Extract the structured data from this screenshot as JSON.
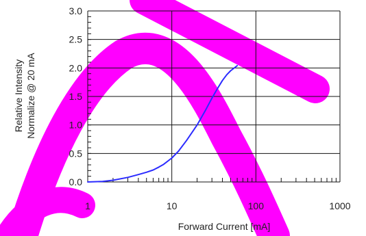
{
  "chart_data": {
    "type": "line",
    "title": "",
    "xlabel": "Forward Current [mA]",
    "ylabel_lines": [
      "Relative Intensity",
      "Normalize @ 20 mA"
    ],
    "x_scale": "log",
    "xlim": [
      1,
      1000
    ],
    "ylim": [
      0,
      3
    ],
    "x_ticks": [
      1,
      10,
      100,
      1000
    ],
    "x_tick_labels": [
      "1",
      "10",
      "100",
      "1000"
    ],
    "y_ticks": [
      0,
      0.5,
      1,
      1.5,
      2,
      2.5,
      3
    ],
    "y_tick_labels": [
      "0.0",
      "0.5",
      "1.0",
      "1.5",
      "2.0",
      "2.5",
      "3.0"
    ],
    "grid": true,
    "series": [
      {
        "color": "#2b2bff",
        "x": [
          1,
          1.5,
          2,
          3,
          4,
          5,
          6,
          7,
          8,
          10,
          12,
          15,
          20,
          25,
          30,
          35,
          40,
          45,
          50,
          60
        ],
        "y": [
          0.0,
          0.01,
          0.03,
          0.08,
          0.13,
          0.17,
          0.21,
          0.26,
          0.31,
          0.42,
          0.54,
          0.73,
          1.0,
          1.25,
          1.47,
          1.64,
          1.78,
          1.88,
          1.95,
          2.04
        ]
      }
    ],
    "background_mark": {
      "shape": "stylized-letters",
      "color": "#ff00ff"
    }
  }
}
